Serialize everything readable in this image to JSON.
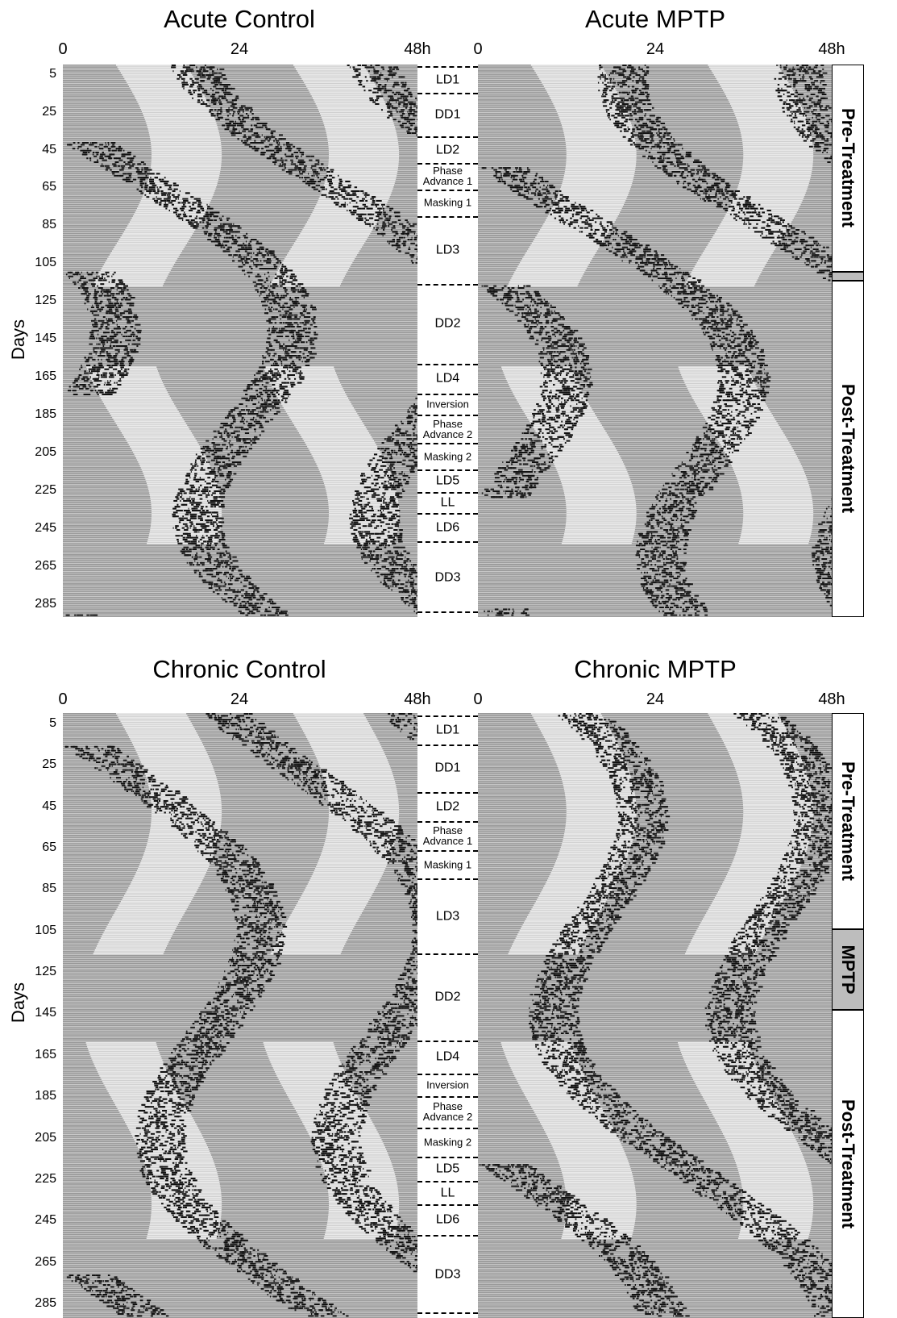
{
  "panels": [
    {
      "title": "Acute Control"
    },
    {
      "title": "Acute MPTP"
    },
    {
      "title": "Chronic Control"
    },
    {
      "title": "Chronic MPTP"
    }
  ],
  "x_ticks": [
    "0",
    "24",
    "48h"
  ],
  "y_ticks": [
    "5",
    "25",
    "45",
    "65",
    "85",
    "105",
    "125",
    "145",
    "165",
    "185",
    "205",
    "225",
    "245",
    "265",
    "285"
  ],
  "y_label": "Days",
  "phases": [
    {
      "label": "LD1",
      "start": 1,
      "end": 15
    },
    {
      "label": "DD1",
      "start": 15,
      "end": 38
    },
    {
      "label": "LD2",
      "start": 38,
      "end": 52
    },
    {
      "label": "Phase\nAdvance 1",
      "start": 52,
      "end": 66
    },
    {
      "label": "Masking 1",
      "start": 66,
      "end": 80
    },
    {
      "label": "LD3",
      "start": 80,
      "end": 116
    },
    {
      "label": "DD2",
      "start": 116,
      "end": 158
    },
    {
      "label": "LD4",
      "start": 158,
      "end": 174
    },
    {
      "label": "Inversion",
      "start": 174,
      "end": 185
    },
    {
      "label": "Phase\nAdvance 2",
      "start": 185,
      "end": 200
    },
    {
      "label": "Masking 2",
      "start": 200,
      "end": 214
    },
    {
      "label": "LD5",
      "start": 214,
      "end": 226
    },
    {
      "label": "LL",
      "start": 226,
      "end": 237
    },
    {
      "label": "LD6",
      "start": 237,
      "end": 252
    },
    {
      "label": "DD3",
      "start": 252,
      "end": 290
    }
  ],
  "side_labels": {
    "pre": "Pre-Treatment",
    "post": "Post-Treatment",
    "mptp": "MPTP"
  }
}
